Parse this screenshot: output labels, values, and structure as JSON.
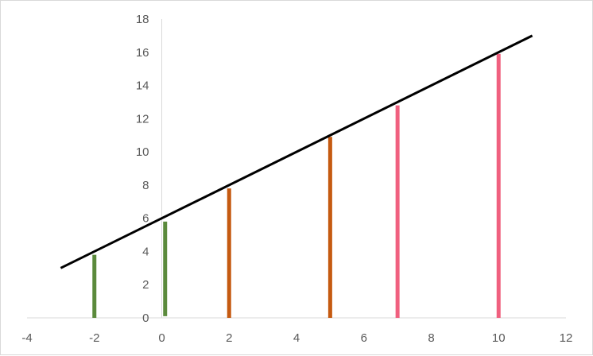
{
  "chart_data": {
    "type": "line",
    "title": "",
    "xlabel": "",
    "ylabel": "",
    "xlim": [
      -4,
      12
    ],
    "ylim": [
      0,
      18
    ],
    "x_ticks": [
      -4,
      -2,
      0,
      2,
      4,
      6,
      8,
      10,
      12
    ],
    "y_ticks": [
      0,
      2,
      4,
      6,
      8,
      10,
      12,
      14,
      16,
      18
    ],
    "grid": false,
    "legend": "none",
    "series": [
      {
        "type": "line",
        "color": "#000000",
        "points": [
          [
            -3,
            3
          ],
          [
            11,
            17
          ]
        ]
      }
    ],
    "segments": [
      {
        "x": -2,
        "y_top": 3.8,
        "y_bottom": 0,
        "color": "#5b8a3c"
      },
      {
        "x": 0.1,
        "y_top": 5.8,
        "y_bottom": 0.1,
        "color": "#5b8a3c"
      },
      {
        "x": 2,
        "y_top": 7.8,
        "y_bottom": 0,
        "color": "#c55a11"
      },
      {
        "x": 5,
        "y_top": 10.9,
        "y_bottom": 0,
        "color": "#c55a11"
      },
      {
        "x": 7,
        "y_top": 12.8,
        "y_bottom": 0,
        "color": "#f0607f"
      },
      {
        "x": 10,
        "y_top": 15.9,
        "y_bottom": 0,
        "color": "#f0607f"
      }
    ]
  }
}
